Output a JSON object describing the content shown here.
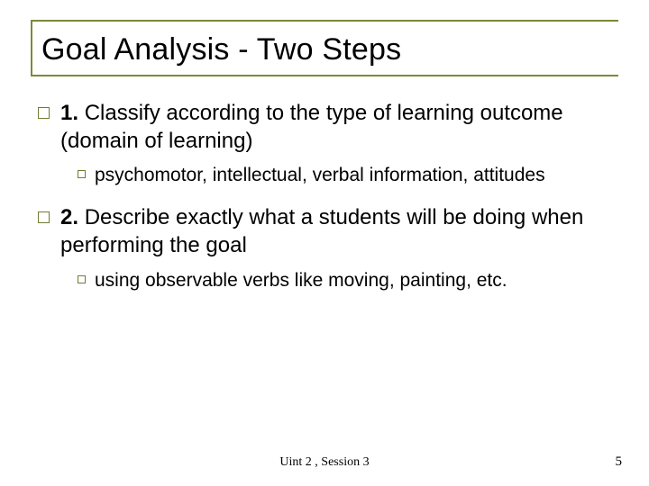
{
  "colors": {
    "accent": "#7a8a3a",
    "bullet": "#6f7d32",
    "text": "#000000",
    "background": "#ffffff"
  },
  "title": "Goal Analysis - Two Steps",
  "points": {
    "p1": {
      "lead": "1.",
      "text": "Classify according to the type of learning outcome (domain of learning)",
      "sub": "psychomotor, intellectual, verbal information, attitudes"
    },
    "p2": {
      "lead": "2.",
      "text": "Describe exactly what a students will be doing when performing the goal",
      "sub": "using observable verbs like moving, painting, etc."
    }
  },
  "footer": {
    "center": "Uint 2 , Session 3",
    "page": "5"
  },
  "typography": {
    "title_fontsize": 34,
    "l1_fontsize": 24,
    "l2_fontsize": 21,
    "footer_fontsize": 14
  }
}
